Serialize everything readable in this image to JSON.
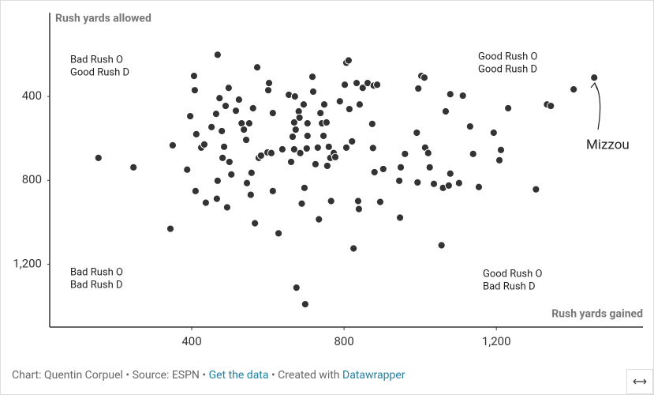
{
  "chart_data": {
    "type": "scatter",
    "x_label": "Rush yards gained",
    "y_label": "Rush yards allowed",
    "xlim": [
      27,
      1585
    ],
    "ylim": [
      1500,
      0
    ],
    "xticks": [
      400,
      800,
      {
        "value": 1200,
        "label": "1,200"
      }
    ],
    "yticks": [
      400,
      800,
      {
        "value": 1200,
        "label": "1,200"
      }
    ],
    "color": "#333333",
    "x": [
      155,
      247,
      344,
      350,
      388,
      396,
      406,
      408,
      410,
      412,
      425,
      433,
      437,
      452,
      464,
      466,
      468,
      468,
      473,
      479,
      481,
      485,
      489,
      493,
      497,
      499,
      504,
      516,
      524,
      531,
      537,
      543,
      545,
      551,
      555,
      557,
      561,
      566,
      572,
      576,
      582,
      601,
      599,
      603,
      609,
      613,
      613,
      628,
      638,
      655,
      661,
      665,
      669,
      669,
      671,
      673,
      675,
      681,
      683,
      685,
      689,
      694,
      696,
      698,
      702,
      704,
      704,
      717,
      719,
      725,
      731,
      734,
      738,
      742,
      746,
      748,
      754,
      756,
      760,
      764,
      766,
      773,
      777,
      789,
      802,
      806,
      806,
      812,
      814,
      821,
      825,
      833,
      837,
      839,
      841,
      849,
      862,
      874,
      876,
      878,
      880,
      887,
      895,
      903,
      945,
      947,
      949,
      960,
      991,
      993,
      995,
      1003,
      1011,
      1013,
      1021,
      1025,
      1036,
      1056,
      1060,
      1067,
      1075,
      1079,
      1079,
      1102,
      1112,
      1131,
      1139,
      1154,
      1193,
      1208,
      1212,
      1231,
      1304,
      1333,
      1343,
      1403,
      1457
    ],
    "values": [
      693,
      738,
      1031,
      633,
      749,
      494,
      302,
      370,
      851,
      580,
      644,
      629,
      907,
      546,
      483,
      888,
      201,
      802,
      408,
      565,
      693,
      640,
      445,
      929,
      359,
      712,
      772,
      468,
      415,
      528,
      558,
      607,
      813,
      528,
      869,
      764,
      456,
      1005,
      261,
      693,
      682,
      370,
      667,
      336,
      670,
      479,
      851,
      1053,
      652,
      392,
      712,
      592,
      524,
      652,
      400,
      558,
      1312,
      471,
      501,
      670,
      911,
      438,
      836,
      1391,
      648,
      528,
      588,
      306,
      377,
      723,
      644,
      986,
      479,
      528,
      588,
      438,
      524,
      731,
      640,
      693,
      899,
      670,
      689,
      423,
      344,
      644,
      239,
      228,
      460,
      614,
      1125,
      336,
      899,
      937,
      438,
      359,
      336,
      531,
      646,
      348,
      761,
      344,
      903,
      746,
      802,
      978,
      738,
      674,
      573,
      810,
      362,
      302,
      310,
      644,
      670,
      738,
      817,
      1110,
      836,
      471,
      825,
      389,
      768,
      813,
      396,
      543,
      674,
      832,
      573,
      704,
      655,
      456,
      843,
      438,
      445,
      366,
      310
    ],
    "quadrant_labels": [
      [
        "Bad Rush O",
        "Good Rush D"
      ],
      [
        "Good Rush O",
        "Good Rush D"
      ],
      [
        "Bad Rush O",
        "Bad Rush D"
      ],
      [
        "Good Rush O",
        "Bad Rush D"
      ]
    ],
    "highlight_label": "Mizzou",
    "footer": [
      "Chart: Quentin Corpuel • Source: ESPN • ",
      "Get the data",
      " • Created with ",
      "Datawrapper"
    ]
  }
}
